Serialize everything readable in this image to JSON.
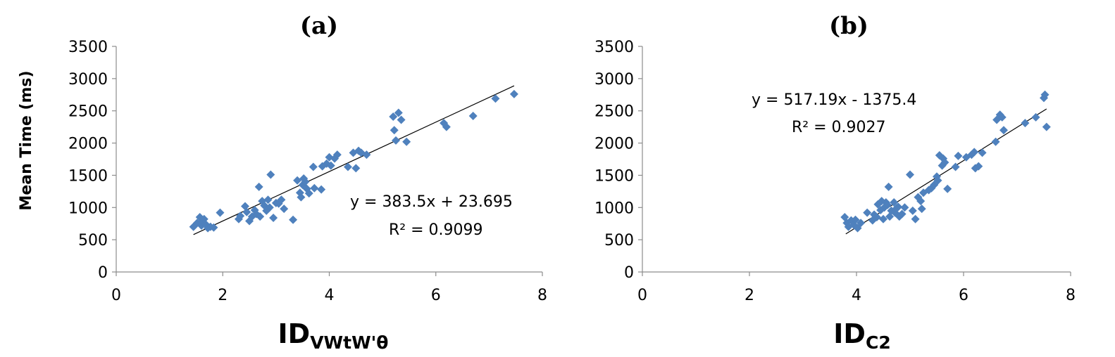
{
  "chart_data": [
    {
      "type": "scatter",
      "title": "(a)",
      "ylabel": "Mean Time (ms)",
      "xlabel_main": "ID",
      "xlabel_sub": "VWtW'θ",
      "xlim": [
        0,
        8
      ],
      "ylim": [
        0,
        3500
      ],
      "xticks": [
        "0",
        "2",
        "4",
        "6",
        "8"
      ],
      "yticks": [
        "0",
        "500",
        "1000",
        "1500",
        "2000",
        "2500",
        "3000",
        "3500"
      ],
      "grid": false,
      "marker_color": "#4f81bd",
      "trendline": {
        "slope": 383.5,
        "intercept": 23.695,
        "x_range": [
          1.45,
          7.47
        ]
      },
      "equation": "y = 383.5x + 23.695",
      "r2": "R² = 0.9099",
      "points": [
        [
          1.45,
          700
        ],
        [
          1.52,
          760
        ],
        [
          1.57,
          850
        ],
        [
          1.6,
          720
        ],
        [
          1.62,
          790
        ],
        [
          1.65,
          820
        ],
        [
          1.68,
          740
        ],
        [
          1.72,
          680
        ],
        [
          1.77,
          700
        ],
        [
          1.83,
          690
        ],
        [
          1.95,
          920
        ],
        [
          2.3,
          820
        ],
        [
          2.33,
          870
        ],
        [
          2.42,
          1020
        ],
        [
          2.45,
          930
        ],
        [
          2.5,
          790
        ],
        [
          2.55,
          860
        ],
        [
          2.6,
          960
        ],
        [
          2.63,
          900
        ],
        [
          2.68,
          1320
        ],
        [
          2.7,
          860
        ],
        [
          2.74,
          1100
        ],
        [
          2.78,
          1030
        ],
        [
          2.82,
          950
        ],
        [
          2.85,
          1120
        ],
        [
          2.88,
          1000
        ],
        [
          2.9,
          1510
        ],
        [
          2.95,
          840
        ],
        [
          3.0,
          1070
        ],
        [
          3.05,
          1060
        ],
        [
          3.1,
          1120
        ],
        [
          3.15,
          980
        ],
        [
          3.32,
          810
        ],
        [
          3.4,
          1420
        ],
        [
          3.45,
          1230
        ],
        [
          3.47,
          1160
        ],
        [
          3.5,
          1350
        ],
        [
          3.52,
          1450
        ],
        [
          3.55,
          1400
        ],
        [
          3.58,
          1290
        ],
        [
          3.62,
          1220
        ],
        [
          3.7,
          1630
        ],
        [
          3.72,
          1300
        ],
        [
          3.85,
          1280
        ],
        [
          3.87,
          1640
        ],
        [
          3.95,
          1680
        ],
        [
          4.0,
          1780
        ],
        [
          4.03,
          1650
        ],
        [
          4.1,
          1760
        ],
        [
          4.15,
          1820
        ],
        [
          4.35,
          1630
        ],
        [
          4.45,
          1850
        ],
        [
          4.5,
          1610
        ],
        [
          4.55,
          1880
        ],
        [
          4.6,
          1850
        ],
        [
          4.7,
          1820
        ],
        [
          5.2,
          2410
        ],
        [
          5.22,
          2200
        ],
        [
          5.25,
          2040
        ],
        [
          5.3,
          2470
        ],
        [
          5.35,
          2360
        ],
        [
          5.45,
          2020
        ],
        [
          6.15,
          2310
        ],
        [
          6.2,
          2250
        ],
        [
          6.7,
          2420
        ],
        [
          7.12,
          2690
        ],
        [
          7.47,
          2760
        ]
      ]
    },
    {
      "type": "scatter",
      "title": "(b)",
      "ylabel": "",
      "xlabel_main": "ID",
      "xlabel_sub": "C2",
      "xlim": [
        0,
        8
      ],
      "ylim": [
        0,
        3500
      ],
      "xticks": [
        "0",
        "2",
        "4",
        "6",
        "8"
      ],
      "yticks": [
        "0",
        "500",
        "1000",
        "1500",
        "2000",
        "2500",
        "3000",
        "3500"
      ],
      "grid": false,
      "marker_color": "#4f81bd",
      "trendline": {
        "slope": 517.19,
        "intercept": -1375.4,
        "x_range": [
          3.8,
          7.55
        ]
      },
      "equation": "y = 517.19x - 1375.4",
      "r2": "R² = 0.9027",
      "points": [
        [
          3.78,
          850
        ],
        [
          3.82,
          760
        ],
        [
          3.85,
          700
        ],
        [
          3.9,
          800
        ],
        [
          3.95,
          730
        ],
        [
          3.98,
          810
        ],
        [
          4.02,
          680
        ],
        [
          4.08,
          760
        ],
        [
          4.2,
          920
        ],
        [
          4.3,
          800
        ],
        [
          4.33,
          890
        ],
        [
          4.38,
          850
        ],
        [
          4.4,
          1050
        ],
        [
          4.45,
          960
        ],
        [
          4.47,
          1100
        ],
        [
          4.5,
          820
        ],
        [
          4.52,
          1000
        ],
        [
          4.55,
          1080
        ],
        [
          4.58,
          1040
        ],
        [
          4.6,
          1320
        ],
        [
          4.62,
          860
        ],
        [
          4.65,
          950
        ],
        [
          4.7,
          1080
        ],
        [
          4.72,
          920
        ],
        [
          4.75,
          990
        ],
        [
          4.78,
          1010
        ],
        [
          4.8,
          860
        ],
        [
          4.85,
          900
        ],
        [
          4.9,
          1000
        ],
        [
          5.0,
          1510
        ],
        [
          5.05,
          950
        ],
        [
          5.1,
          820
        ],
        [
          5.15,
          1160
        ],
        [
          5.2,
          1100
        ],
        [
          5.22,
          980
        ],
        [
          5.25,
          1230
        ],
        [
          5.35,
          1270
        ],
        [
          5.4,
          1300
        ],
        [
          5.45,
          1350
        ],
        [
          5.5,
          1480
        ],
        [
          5.52,
          1420
        ],
        [
          5.55,
          1810
        ],
        [
          5.6,
          1650
        ],
        [
          5.62,
          1760
        ],
        [
          5.65,
          1700
        ],
        [
          5.7,
          1290
        ],
        [
          5.85,
          1630
        ],
        [
          5.9,
          1800
        ],
        [
          6.05,
          1780
        ],
        [
          6.15,
          1820
        ],
        [
          6.2,
          1860
        ],
        [
          6.22,
          1610
        ],
        [
          6.28,
          1640
        ],
        [
          6.35,
          1850
        ],
        [
          6.6,
          2020
        ],
        [
          6.62,
          2360
        ],
        [
          6.68,
          2440
        ],
        [
          6.72,
          2400
        ],
        [
          6.75,
          2200
        ],
        [
          7.15,
          2310
        ],
        [
          7.35,
          2400
        ],
        [
          7.5,
          2700
        ],
        [
          7.52,
          2750
        ],
        [
          7.55,
          2250
        ]
      ]
    }
  ]
}
